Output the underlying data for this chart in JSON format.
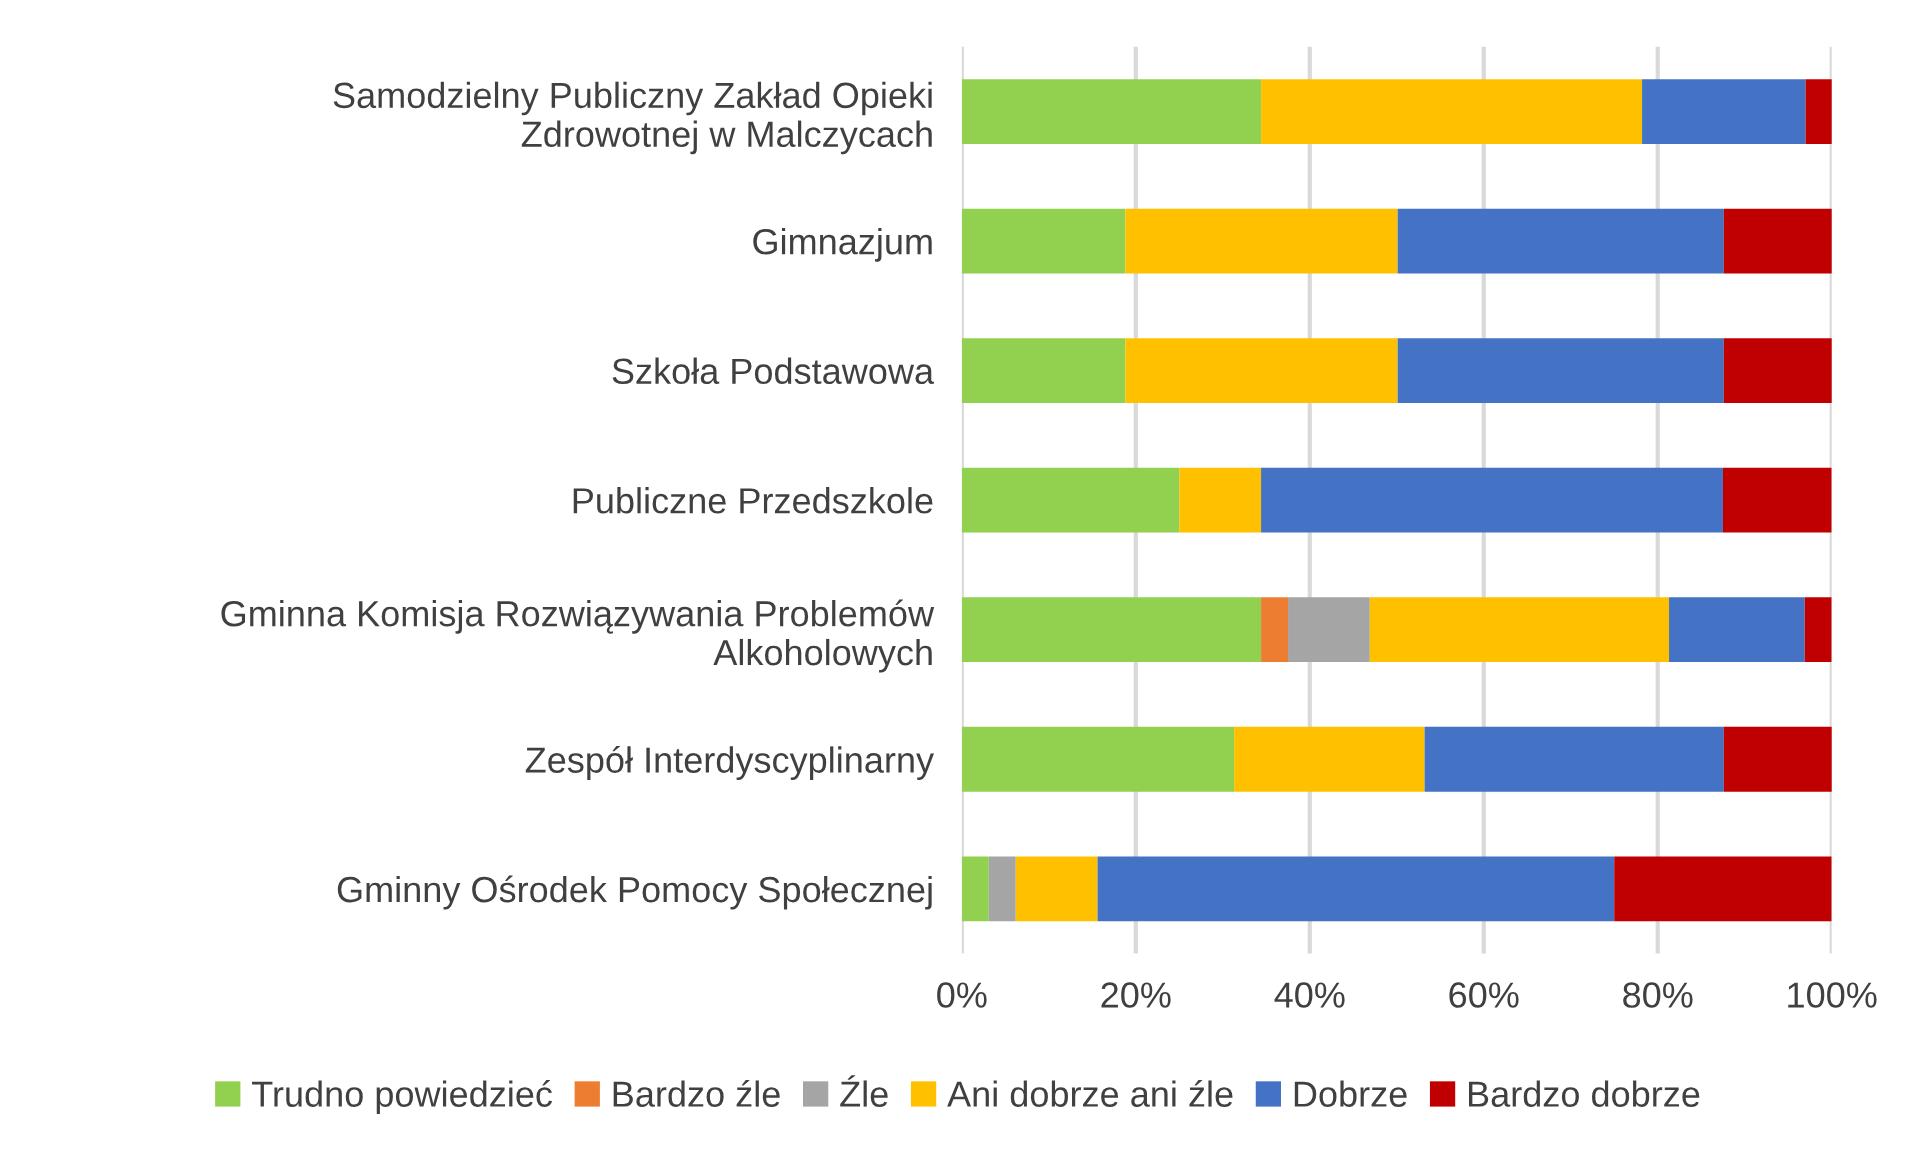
{
  "chart_data": {
    "type": "bar",
    "orientation": "horizontal",
    "stacked": true,
    "categories": [
      "Samodzielny Publiczny Zakład Opieki\nZdrowotnej w Malczycach",
      "Gimnazjum",
      "Szkoła Podstawowa",
      "Publiczne Przedszkole",
      "Gminna Komisja Rozwiązywania Problemów\nAlkoholowych",
      "Zespół Interdyscyplinarny",
      "Gminny Ośrodek Pomocy Społecznej"
    ],
    "series": [
      {
        "name": "Trudno powiedzieć",
        "color": "#92d050",
        "values": [
          34.4,
          18.8,
          18.8,
          25,
          34.4,
          31.3,
          3.1
        ]
      },
      {
        "name": "Bardzo źle",
        "color": "#ed7d31",
        "values": [
          0,
          0,
          0,
          0,
          3.1,
          0,
          0
        ]
      },
      {
        "name": "Źle",
        "color": "#a5a5a5",
        "values": [
          0,
          0,
          0,
          0,
          9.4,
          0,
          3.1
        ]
      },
      {
        "name": "Ani dobrze ani źle",
        "color": "#ffc000",
        "values": [
          43.8,
          31.3,
          31.3,
          9.4,
          34.4,
          21.9,
          9.4
        ]
      },
      {
        "name": "Dobrze",
        "color": "#4472c4",
        "values": [
          18.8,
          37.5,
          37.5,
          53.1,
          15.6,
          34.4,
          59.4
        ]
      },
      {
        "name": "Bardzo dobrze",
        "color": "#c00000",
        "values": [
          3.1,
          12.5,
          12.5,
          12.5,
          3.1,
          12.5,
          25
        ]
      }
    ],
    "xlim": [
      0,
      100
    ],
    "xticks": [
      {
        "value": 0,
        "label": "0%"
      },
      {
        "value": 20,
        "label": "20%"
      },
      {
        "value": 40,
        "label": "40%"
      },
      {
        "value": 60,
        "label": "60%"
      },
      {
        "value": 80,
        "label": "80%"
      },
      {
        "value": 100,
        "label": "100%"
      }
    ],
    "grid": "x",
    "legend": "bottom"
  }
}
